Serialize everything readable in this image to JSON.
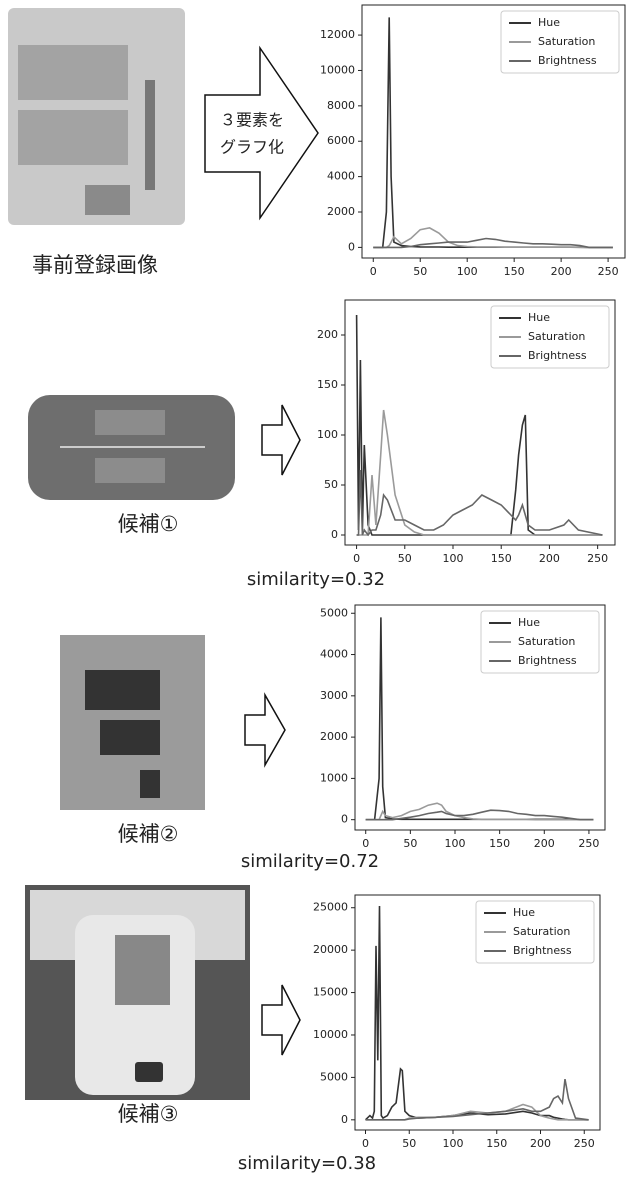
{
  "captions": [
    "事前登録画像",
    "候補①",
    "候補②",
    "候補③"
  ],
  "arrow_text": [
    "３要素を",
    "グラフ化"
  ],
  "similarities": [
    "similarity=0.32",
    "similarity=0.72",
    "similarity=0.38"
  ],
  "chart_data": [
    {
      "type": "line",
      "xlim": [
        -12,
        268
      ],
      "ylim": [
        -600,
        13700
      ],
      "xticks": [
        0,
        50,
        100,
        150,
        200,
        250
      ],
      "yticks": [
        0,
        2000,
        4000,
        6000,
        8000,
        10000,
        12000
      ],
      "x": [
        0,
        10,
        14,
        17,
        19,
        22,
        30,
        40,
        50,
        60,
        70,
        80,
        90,
        100,
        110,
        120,
        130,
        140,
        150,
        160,
        170,
        180,
        190,
        200,
        210,
        220,
        230,
        240,
        255
      ],
      "series": [
        {
          "name": "Hue",
          "color": "#333333",
          "values": [
            0,
            0,
            2000,
            13000,
            4000,
            300,
            100,
            50,
            30,
            20,
            20,
            10,
            10,
            10,
            10,
            10,
            10,
            10,
            10,
            10,
            10,
            10,
            10,
            10,
            10,
            10,
            0,
            0,
            0
          ]
        },
        {
          "name": "Saturation",
          "color": "#9a9a9a",
          "values": [
            0,
            0,
            0,
            100,
            300,
            600,
            200,
            500,
            1000,
            1100,
            800,
            300,
            100,
            50,
            30,
            20,
            20,
            10,
            10,
            10,
            10,
            10,
            10,
            10,
            10,
            0,
            0,
            0,
            0
          ]
        },
        {
          "name": "Brightness",
          "color": "#666666",
          "values": [
            0,
            0,
            0,
            0,
            0,
            0,
            0,
            50,
            150,
            200,
            250,
            300,
            300,
            300,
            400,
            500,
            450,
            350,
            300,
            250,
            200,
            200,
            180,
            150,
            150,
            100,
            0,
            0,
            0
          ]
        }
      ]
    },
    {
      "type": "line",
      "xlim": [
        -12,
        268
      ],
      "ylim": [
        -10,
        235
      ],
      "xticks": [
        0,
        50,
        100,
        150,
        200,
        250
      ],
      "yticks": [
        0,
        50,
        100,
        150,
        200
      ],
      "x": [
        0,
        2,
        4,
        6,
        8,
        12,
        16,
        20,
        25,
        28,
        32,
        40,
        50,
        60,
        70,
        80,
        90,
        100,
        110,
        120,
        130,
        140,
        150,
        160,
        165,
        168,
        172,
        175,
        178,
        185,
        200,
        215,
        220,
        230,
        255
      ],
      "series": [
        {
          "name": "Hue",
          "color": "#333333",
          "values": [
            220,
            5,
            175,
            5,
            90,
            10,
            0,
            0,
            0,
            0,
            0,
            0,
            0,
            0,
            0,
            0,
            0,
            0,
            0,
            0,
            0,
            0,
            0,
            0,
            45,
            80,
            110,
            120,
            5,
            0,
            0,
            0,
            0,
            0,
            0
          ]
        },
        {
          "name": "Saturation",
          "color": "#9a9a9a",
          "values": [
            0,
            0,
            0,
            0,
            0,
            0,
            60,
            10,
            80,
            125,
            100,
            40,
            10,
            3,
            0,
            0,
            0,
            0,
            0,
            0,
            0,
            0,
            0,
            0,
            0,
            0,
            0,
            0,
            0,
            0,
            0,
            0,
            0,
            0,
            0
          ]
        },
        {
          "name": "Brightness",
          "color": "#666666",
          "values": [
            0,
            0,
            65,
            0,
            5,
            0,
            5,
            5,
            20,
            40,
            35,
            15,
            15,
            10,
            5,
            5,
            10,
            20,
            25,
            30,
            40,
            35,
            30,
            20,
            15,
            20,
            30,
            20,
            10,
            5,
            5,
            10,
            15,
            5,
            0
          ]
        }
      ]
    },
    {
      "type": "line",
      "xlim": [
        -12,
        268
      ],
      "ylim": [
        -250,
        5200
      ],
      "xticks": [
        0,
        50,
        100,
        150,
        200,
        250
      ],
      "yticks": [
        0,
        1000,
        2000,
        3000,
        4000,
        5000
      ],
      "x": [
        0,
        10,
        15,
        17,
        19,
        22,
        30,
        40,
        50,
        60,
        70,
        80,
        85,
        90,
        100,
        110,
        120,
        130,
        140,
        150,
        160,
        170,
        180,
        190,
        200,
        210,
        220,
        230,
        240,
        255
      ],
      "series": [
        {
          "name": "Hue",
          "color": "#333333",
          "values": [
            0,
            0,
            1000,
            4900,
            800,
            50,
            20,
            10,
            10,
            10,
            10,
            10,
            10,
            10,
            10,
            10,
            10,
            10,
            10,
            10,
            10,
            10,
            10,
            10,
            10,
            10,
            10,
            10,
            0,
            0
          ]
        },
        {
          "name": "Saturation",
          "color": "#9a9a9a",
          "values": [
            0,
            0,
            0,
            100,
            200,
            100,
            50,
            100,
            200,
            250,
            350,
            400,
            350,
            200,
            100,
            50,
            20,
            10,
            10,
            10,
            10,
            10,
            10,
            0,
            0,
            0,
            0,
            0,
            0,
            0
          ]
        },
        {
          "name": "Brightness",
          "color": "#666666",
          "values": [
            0,
            0,
            0,
            0,
            0,
            0,
            0,
            30,
            60,
            100,
            150,
            180,
            200,
            150,
            100,
            100,
            130,
            180,
            230,
            220,
            200,
            150,
            130,
            100,
            100,
            80,
            60,
            30,
            0,
            0
          ]
        }
      ]
    },
    {
      "type": "line",
      "xlim": [
        -12,
        268
      ],
      "ylim": [
        -1200,
        26500
      ],
      "xticks": [
        0,
        50,
        100,
        150,
        200,
        250
      ],
      "yticks": [
        0,
        5000,
        10000,
        15000,
        20000,
        25000
      ],
      "x": [
        0,
        5,
        8,
        10,
        12,
        14,
        16,
        18,
        20,
        25,
        30,
        35,
        40,
        42,
        45,
        50,
        60,
        80,
        100,
        120,
        140,
        160,
        180,
        190,
        200,
        210,
        215,
        220,
        225,
        228,
        232,
        240,
        255
      ],
      "series": [
        {
          "name": "Hue",
          "color": "#333333",
          "values": [
            0,
            500,
            200,
            1000,
            20500,
            7000,
            25200,
            500,
            200,
            500,
            1500,
            2000,
            6000,
            5800,
            1000,
            500,
            200,
            300,
            500,
            800,
            600,
            700,
            1000,
            800,
            500,
            500,
            300,
            200,
            100,
            50,
            0,
            0,
            0
          ]
        },
        {
          "name": "Saturation",
          "color": "#9a9a9a",
          "values": [
            0,
            0,
            0,
            0,
            0,
            0,
            0,
            0,
            0,
            0,
            0,
            0,
            0,
            0,
            0,
            200,
            300,
            300,
            500,
            1000,
            800,
            1000,
            1800,
            1500,
            500,
            200,
            100,
            0,
            0,
            0,
            0,
            0,
            0
          ]
        },
        {
          "name": "Brightness",
          "color": "#666666",
          "values": [
            0,
            0,
            0,
            0,
            0,
            0,
            0,
            0,
            0,
            0,
            0,
            0,
            0,
            0,
            0,
            100,
            200,
            300,
            400,
            600,
            800,
            1000,
            1300,
            1000,
            1000,
            1500,
            2500,
            2800,
            2000,
            4800,
            2500,
            200,
            0
          ]
        }
      ]
    }
  ]
}
